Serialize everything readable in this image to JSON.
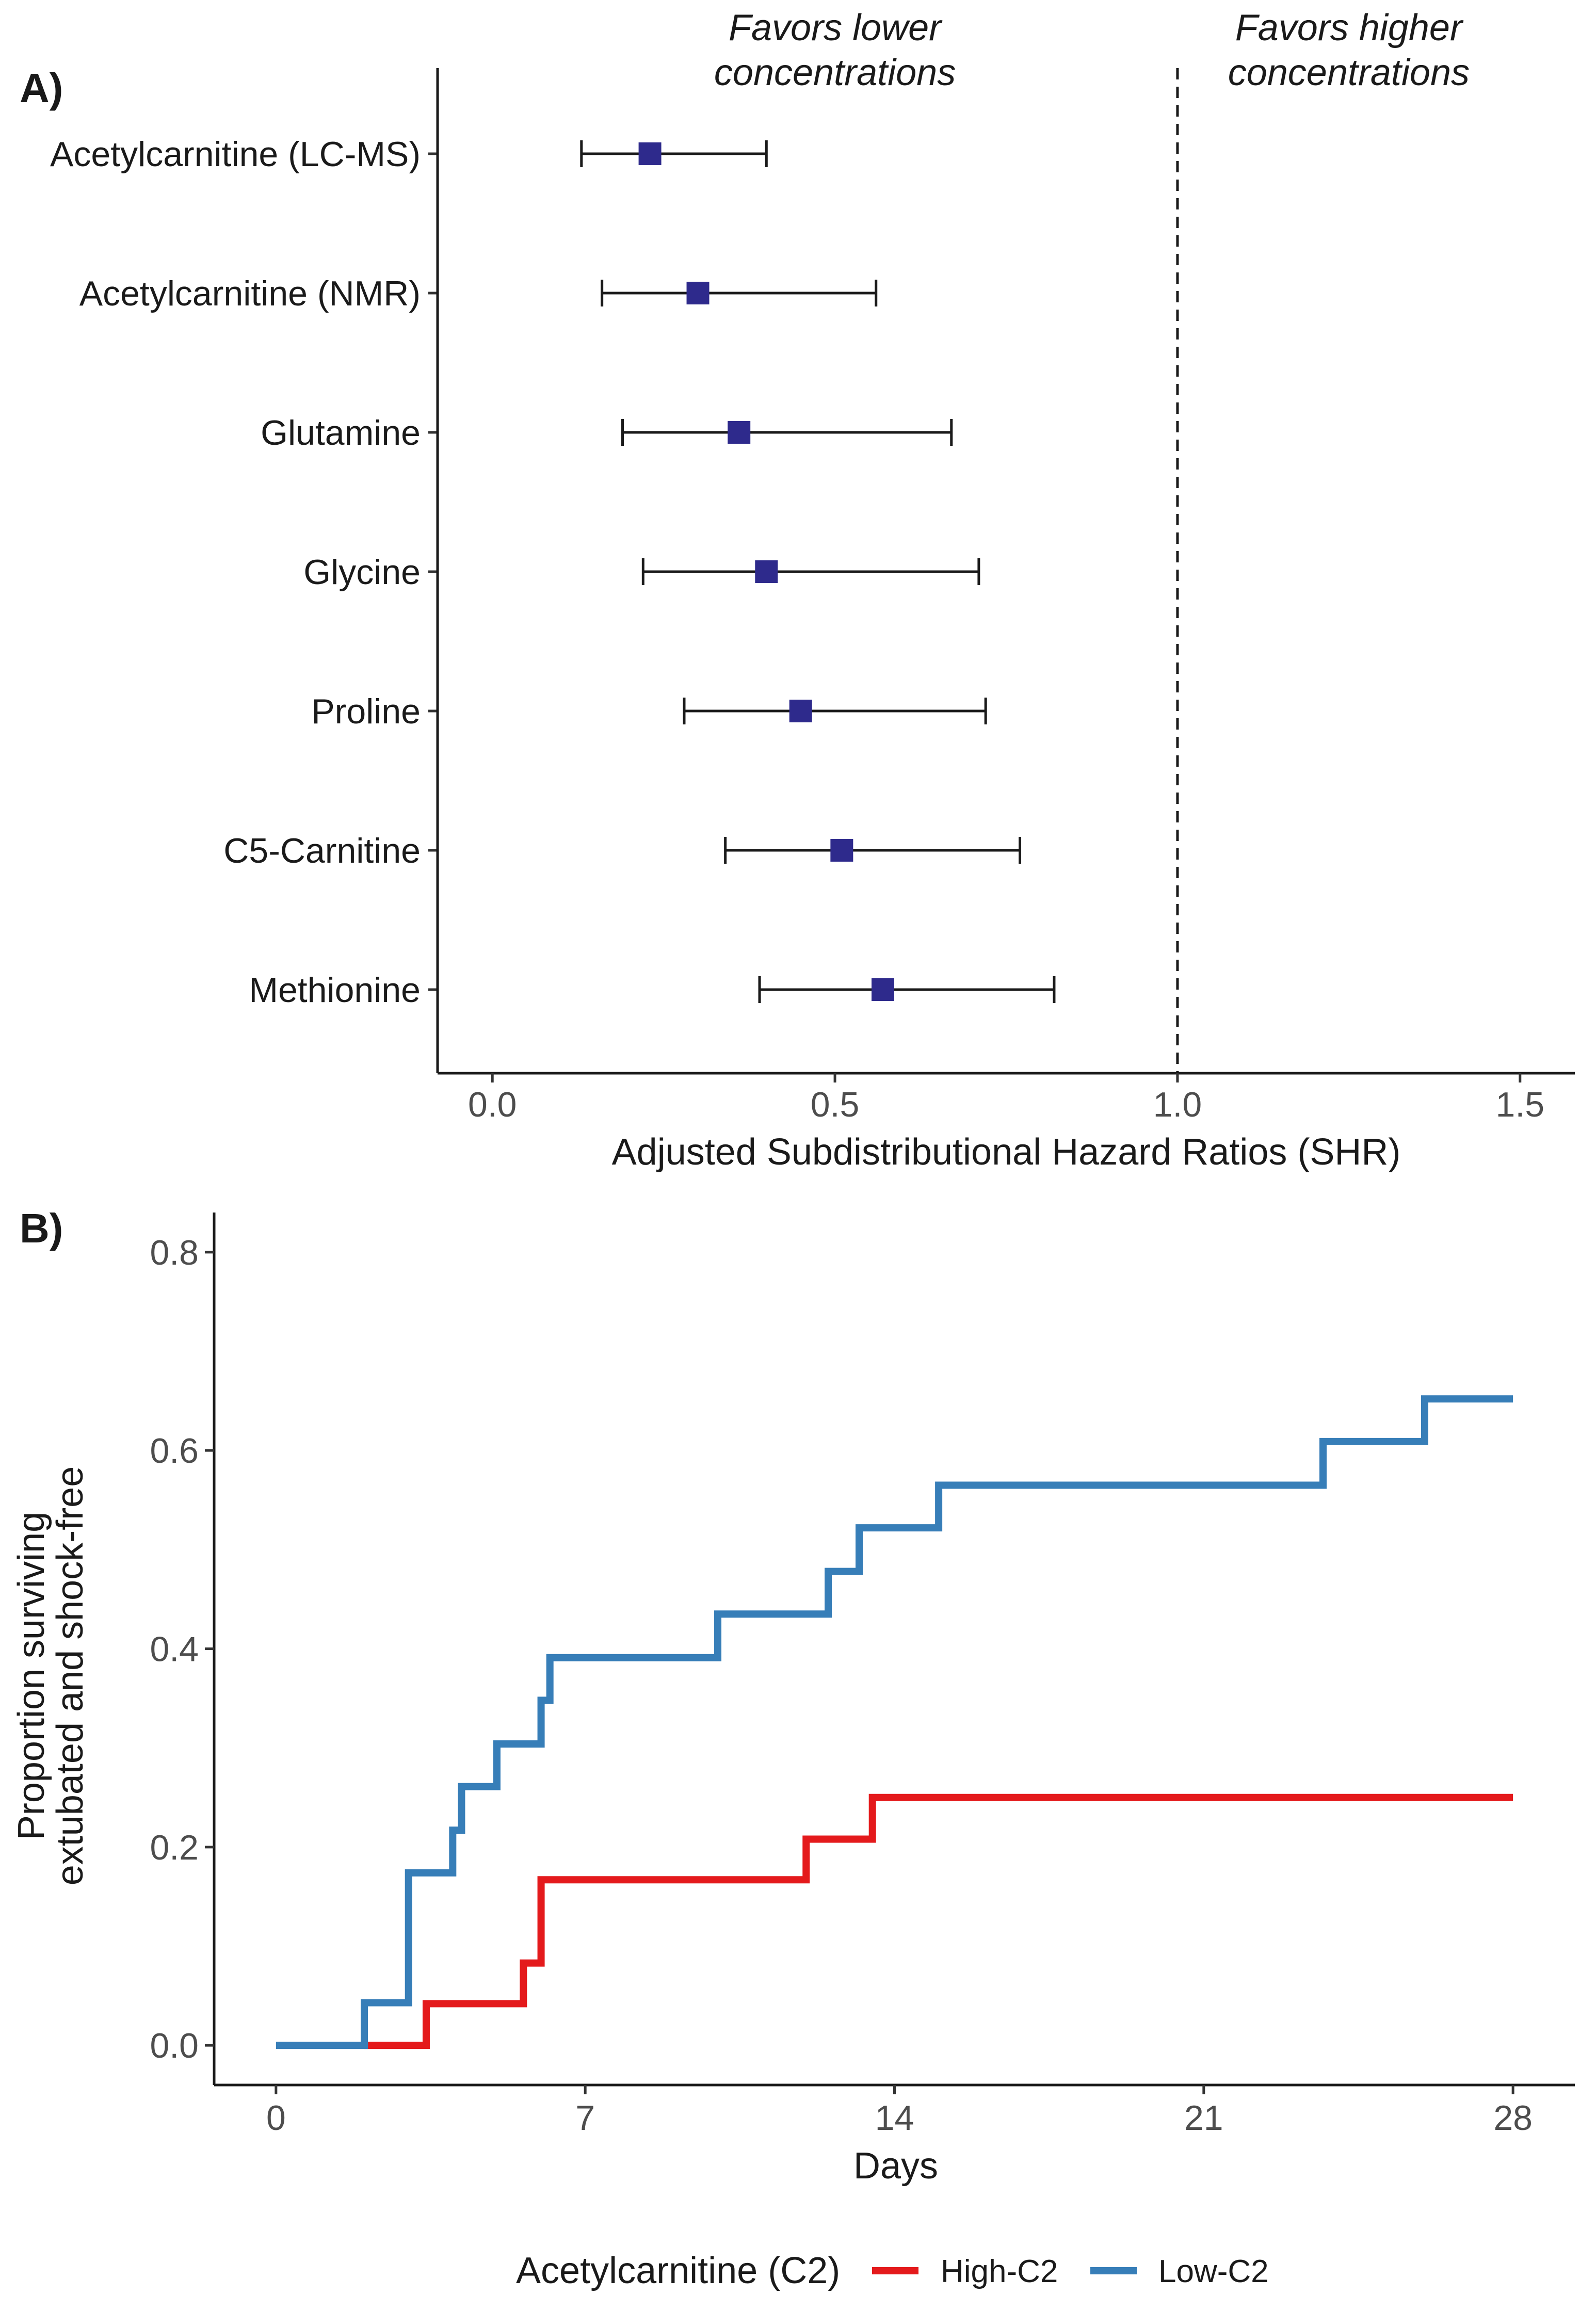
{
  "chart_data": [
    {
      "panel": "A)",
      "type": "scatter",
      "subtype": "forest-plot",
      "xlabel": "Adjusted Subdistributional Hazard Ratios (SHR)",
      "xlim": [
        -0.08,
        1.58
      ],
      "xticks": [
        0.0,
        0.5,
        1.0,
        1.5
      ],
      "xtick_labels": [
        "0.0",
        "0.5",
        "1.0",
        "1.5"
      ],
      "reference_line": 1.0,
      "annotations": {
        "favors_lower": [
          "Favors lower",
          "concentrations"
        ],
        "favors_higher": [
          "Favors higher",
          "concentrations"
        ]
      },
      "point_color": "#2e2a8c",
      "rows": [
        {
          "label": "Acetylcarnitine (LC-MS)",
          "estimate": 0.23,
          "lower": 0.13,
          "upper": 0.4
        },
        {
          "label": "Acetylcarnitine (NMR)",
          "estimate": 0.3,
          "lower": 0.16,
          "upper": 0.56
        },
        {
          "label": "Glutamine",
          "estimate": 0.36,
          "lower": 0.19,
          "upper": 0.67
        },
        {
          "label": "Glycine",
          "estimate": 0.4,
          "lower": 0.22,
          "upper": 0.71
        },
        {
          "label": "Proline",
          "estimate": 0.45,
          "lower": 0.28,
          "upper": 0.72
        },
        {
          "label": "C5-Carnitine",
          "estimate": 0.51,
          "lower": 0.34,
          "upper": 0.77
        },
        {
          "label": "Methionine",
          "estimate": 0.57,
          "lower": 0.39,
          "upper": 0.82
        }
      ]
    },
    {
      "panel": "B)",
      "type": "line",
      "subtype": "step",
      "xlabel": "Days",
      "ylabel": [
        "Proportion surviving",
        "extubated and shock-free"
      ],
      "xlim": [
        -1.4,
        29.4
      ],
      "ylim": [
        -0.04,
        0.84
      ],
      "xticks": [
        0,
        7,
        14,
        21,
        28
      ],
      "xtick_labels": [
        "0",
        "7",
        "14",
        "21",
        "28"
      ],
      "yticks": [
        0.0,
        0.2,
        0.4,
        0.6,
        0.8
      ],
      "ytick_labels": [
        "0.0",
        "0.2",
        "0.4",
        "0.6",
        "0.8"
      ],
      "legend": {
        "title": "Acetylcarnitine (C2)",
        "position": "bottom"
      },
      "series": [
        {
          "name": "High-C2",
          "color": "#e41a1c",
          "x": [
            2.0,
            3.4,
            5.6,
            6.0,
            12.0,
            13.5,
            28.0
          ],
          "y": [
            0.0,
            0.042,
            0.083,
            0.167,
            0.208,
            0.25,
            0.25
          ]
        },
        {
          "name": "Low-C2",
          "color": "#377eb8",
          "x": [
            0.0,
            2.0,
            3.0,
            4.0,
            4.2,
            5.0,
            6.0,
            6.2,
            10.0,
            12.5,
            13.2,
            15.0,
            23.7,
            26.0,
            28.0
          ],
          "y": [
            0.0,
            0.043,
            0.174,
            0.217,
            0.261,
            0.304,
            0.348,
            0.391,
            0.435,
            0.478,
            0.522,
            0.565,
            0.609,
            0.652,
            0.652
          ]
        }
      ]
    }
  ]
}
